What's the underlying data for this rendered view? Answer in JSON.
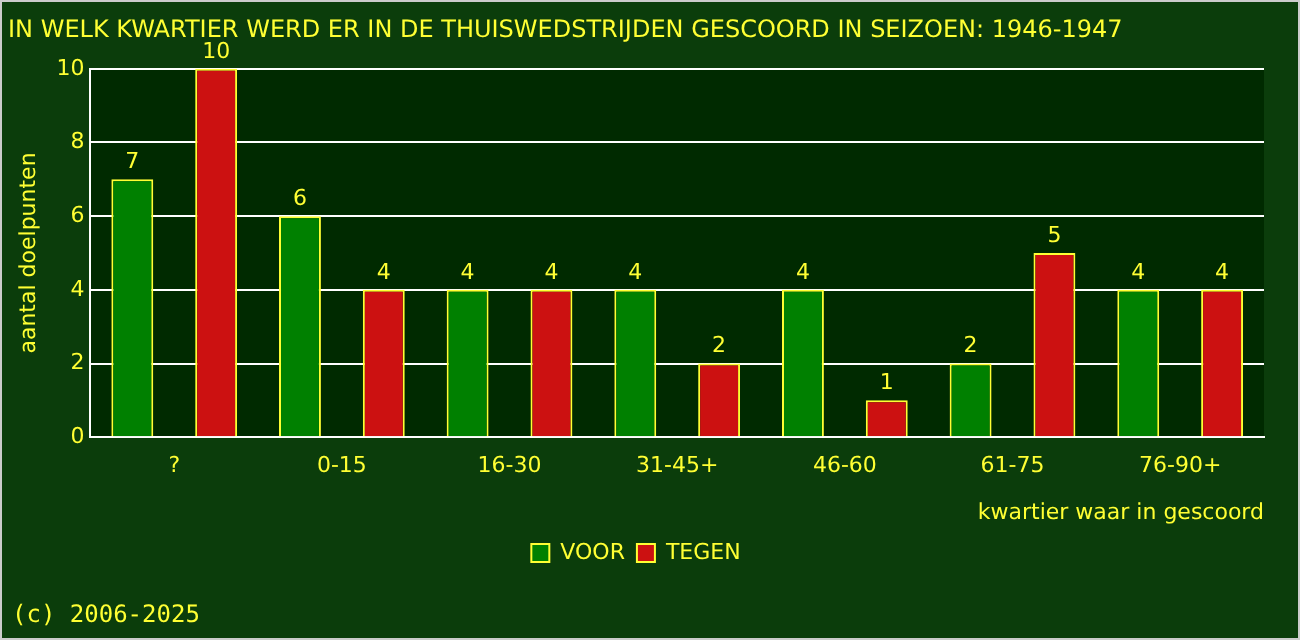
{
  "chart_data": {
    "type": "bar",
    "title": "IN WELK KWARTIER WERD ER IN DE THUISWEDSTRIJDEN GESCOORD IN SEIZOEN: 1946-1947",
    "xlabel": "kwartier waar in gescoord",
    "ylabel": "aantal doelpunten",
    "categories": [
      "?",
      "0-15",
      "16-30",
      "31-45+",
      "46-60",
      "61-75",
      "76-90+"
    ],
    "series": [
      {
        "name": "VOOR",
        "color": "#008000",
        "values": [
          7,
          6,
          4,
          4,
          4,
          2,
          4
        ]
      },
      {
        "name": "TEGEN",
        "color": "#cc1111",
        "values": [
          10,
          4,
          4,
          2,
          1,
          5,
          4
        ]
      }
    ],
    "ylim": [
      0,
      10
    ],
    "yticks": [
      0,
      2,
      4,
      6,
      8,
      10
    ],
    "grid": "y",
    "legend": "bottom",
    "data_labels": true,
    "annotations": [
      "(c) 2006-2025"
    ]
  }
}
